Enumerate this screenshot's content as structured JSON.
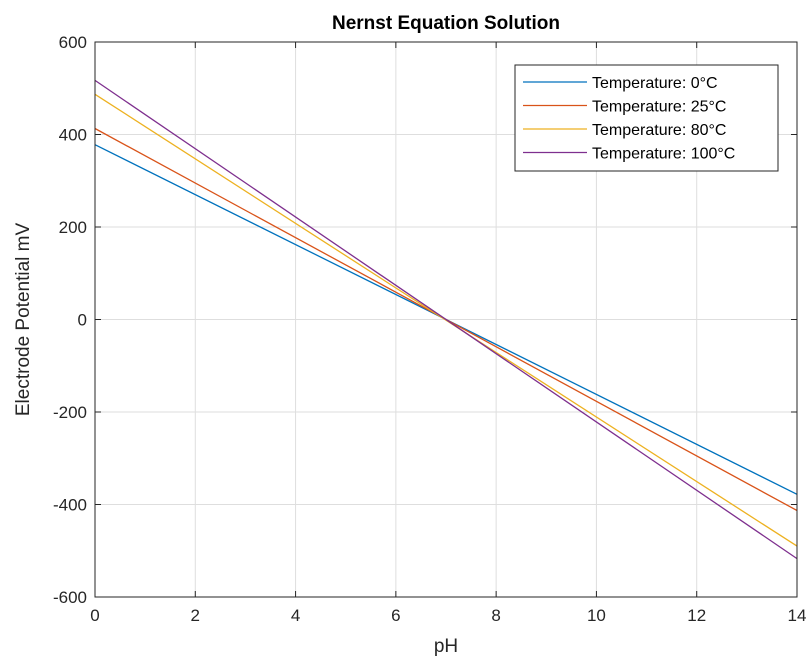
{
  "chart_data": {
    "type": "line",
    "title": "Nernst Equation Solution",
    "xlabel": "pH",
    "ylabel": "Electrode Potential mV",
    "xlim": [
      0,
      14
    ],
    "ylim": [
      -600,
      600
    ],
    "xticks": [
      0,
      2,
      4,
      6,
      8,
      10,
      12,
      14
    ],
    "yticks": [
      -600,
      -400,
      -200,
      0,
      200,
      400,
      600
    ],
    "grid": true,
    "legend_position": "top-right",
    "x": [
      0,
      14
    ],
    "series": [
      {
        "name": "Temperature: 0°C",
        "color": "#0072BD",
        "values": [
          378,
          -378
        ]
      },
      {
        "name": "Temperature: 25°C",
        "color": "#D95319",
        "values": [
          413,
          -413
        ]
      },
      {
        "name": "Temperature: 80°C",
        "color": "#EDB120",
        "values": [
          487,
          -490
        ]
      },
      {
        "name": "Temperature: 100°C",
        "color": "#7E2F8E",
        "values": [
          517,
          -517
        ]
      }
    ]
  }
}
